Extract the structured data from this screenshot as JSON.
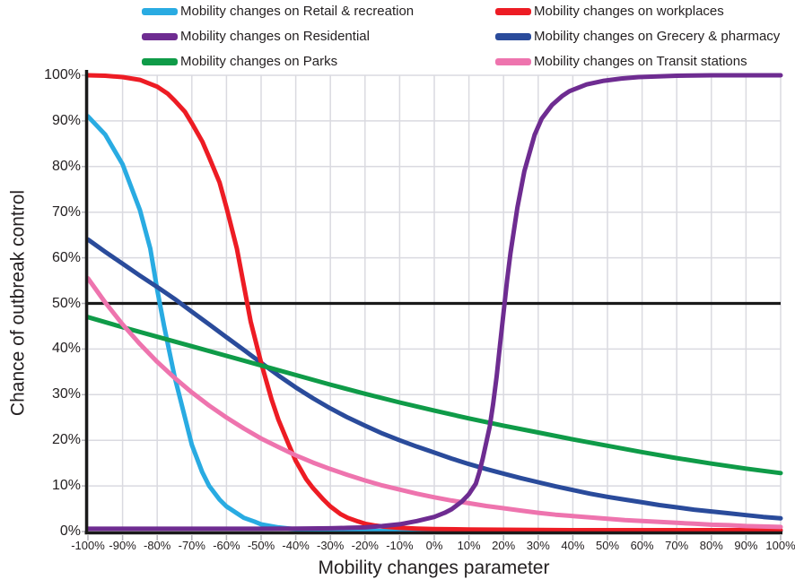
{
  "legend": {
    "items": [
      {
        "label": "Mobility changes on Retail & recreation",
        "color": "#29ABE2",
        "column": 1,
        "key": "retail-recreation"
      },
      {
        "label": "Mobility changes on workplaces",
        "color": "#ED1C24",
        "column": 2,
        "key": "workplaces"
      },
      {
        "label": "Mobility changes on Residential",
        "color": "#6E2C91",
        "column": 1,
        "key": "residential"
      },
      {
        "label": "Mobility changes on Grecery & pharmacy",
        "color": "#2A4B9B",
        "column": 2,
        "key": "grocery-pharmacy"
      },
      {
        "label": "Mobility changes on Parks",
        "color": "#0F9B48",
        "column": 1,
        "key": "parks"
      },
      {
        "label": "Mobility changes on Transit stations",
        "color": "#EE74AE",
        "column": 2,
        "key": "transit-stations"
      }
    ]
  },
  "chart_data": {
    "type": "line",
    "title": "",
    "xlabel": "Mobility changes parameter",
    "ylabel": "Chance of outbreak control",
    "xlim": [
      -100,
      100
    ],
    "ylim": [
      0,
      100
    ],
    "grid": true,
    "legend_position": "top",
    "reference_line": {
      "y": 50,
      "color": "#1A1A1A"
    },
    "x_ticks": [
      "-100%",
      "-90%",
      "-80%",
      "-70%",
      "-60%",
      "-50%",
      "-40%",
      "-30%",
      "-20%",
      "-10%",
      "0%",
      "10%",
      "20%",
      "30%",
      "40%",
      "50%",
      "60%",
      "70%",
      "80%",
      "90%",
      "100%"
    ],
    "y_ticks": [
      "0%",
      "10%",
      "20%",
      "30%",
      "40%",
      "50%",
      "60%",
      "70%",
      "80%",
      "90%",
      "100%"
    ],
    "series": [
      {
        "name": "Mobility changes on Retail & recreation",
        "key": "retail-recreation",
        "color": "#29ABE2",
        "points": [
          [
            -100,
            91
          ],
          [
            -95,
            87
          ],
          [
            -90,
            80.5
          ],
          [
            -85,
            70.5
          ],
          [
            -82,
            62
          ],
          [
            -80,
            53
          ],
          [
            -78,
            45
          ],
          [
            -75,
            34
          ],
          [
            -72,
            25
          ],
          [
            -70,
            19
          ],
          [
            -67,
            13
          ],
          [
            -65,
            10
          ],
          [
            -62,
            7
          ],
          [
            -60,
            5.5
          ],
          [
            -57,
            4
          ],
          [
            -55,
            3
          ],
          [
            -52,
            2.2
          ],
          [
            -50,
            1.6
          ],
          [
            -45,
            0.9
          ],
          [
            -40,
            0.5
          ],
          [
            -35,
            0.3
          ],
          [
            -30,
            0.2
          ],
          [
            -25,
            0.15
          ],
          [
            -20,
            0.12
          ],
          [
            -10,
            0.1
          ],
          [
            0,
            0.1
          ],
          [
            20,
            0.1
          ],
          [
            40,
            0.1
          ],
          [
            60,
            0.1
          ],
          [
            80,
            0.1
          ],
          [
            100,
            0.1
          ]
        ]
      },
      {
        "name": "Mobility changes on Grecery & pharmacy",
        "key": "grocery-pharmacy",
        "color": "#2A4B9B",
        "points": [
          [
            -100,
            64
          ],
          [
            -95,
            61.3
          ],
          [
            -90,
            58.7
          ],
          [
            -85,
            56.1
          ],
          [
            -80,
            53.6
          ],
          [
            -75,
            51
          ],
          [
            -70,
            48.2
          ],
          [
            -65,
            45.4
          ],
          [
            -60,
            42.6
          ],
          [
            -55,
            39.8
          ],
          [
            -50,
            37
          ],
          [
            -45,
            34.2
          ],
          [
            -40,
            31.6
          ],
          [
            -35,
            29.2
          ],
          [
            -30,
            27
          ],
          [
            -25,
            25
          ],
          [
            -20,
            23.2
          ],
          [
            -15,
            21.5
          ],
          [
            -10,
            20
          ],
          [
            -5,
            18.6
          ],
          [
            0,
            17.3
          ],
          [
            5,
            16
          ],
          [
            10,
            14.8
          ],
          [
            15,
            13.7
          ],
          [
            20,
            12.7
          ],
          [
            25,
            11.7
          ],
          [
            30,
            10.8
          ],
          [
            35,
            9.9
          ],
          [
            40,
            9.1
          ],
          [
            45,
            8.3
          ],
          [
            50,
            7.6
          ],
          [
            55,
            7
          ],
          [
            60,
            6.4
          ],
          [
            65,
            5.8
          ],
          [
            70,
            5.3
          ],
          [
            75,
            4.8
          ],
          [
            80,
            4.4
          ],
          [
            85,
            4
          ],
          [
            90,
            3.6
          ],
          [
            95,
            3.2
          ],
          [
            100,
            2.9
          ]
        ]
      },
      {
        "name": "Mobility changes on workplaces",
        "key": "workplaces",
        "color": "#ED1C24",
        "points": [
          [
            -100,
            100
          ],
          [
            -95,
            99.9
          ],
          [
            -90,
            99.6
          ],
          [
            -85,
            99
          ],
          [
            -80,
            97.5
          ],
          [
            -77,
            96
          ],
          [
            -75,
            94.5
          ],
          [
            -72,
            92
          ],
          [
            -70,
            89.5
          ],
          [
            -67,
            85.5
          ],
          [
            -65,
            82
          ],
          [
            -62,
            76.5
          ],
          [
            -60,
            71
          ],
          [
            -57,
            62
          ],
          [
            -55,
            54
          ],
          [
            -53,
            46
          ],
          [
            -50,
            37
          ],
          [
            -47,
            29
          ],
          [
            -45,
            24.5
          ],
          [
            -42,
            19
          ],
          [
            -40,
            15.5
          ],
          [
            -37,
            11.5
          ],
          [
            -35,
            9.5
          ],
          [
            -32,
            7
          ],
          [
            -30,
            5.5
          ],
          [
            -27,
            3.8
          ],
          [
            -25,
            3
          ],
          [
            -22,
            2.2
          ],
          [
            -20,
            1.7
          ],
          [
            -17,
            1.3
          ],
          [
            -15,
            1.1
          ],
          [
            -10,
            0.8
          ],
          [
            -5,
            0.65
          ],
          [
            0,
            0.55
          ],
          [
            10,
            0.45
          ],
          [
            20,
            0.4
          ],
          [
            30,
            0.35
          ],
          [
            40,
            0.3
          ],
          [
            60,
            0.3
          ],
          [
            80,
            0.3
          ],
          [
            100,
            0.3
          ]
        ]
      },
      {
        "name": "Mobility changes on Parks",
        "key": "parks",
        "color": "#0F9B48",
        "points": [
          [
            -100,
            47
          ],
          [
            -90,
            44.8
          ],
          [
            -80,
            42.7
          ],
          [
            -70,
            40.6
          ],
          [
            -60,
            38.5
          ],
          [
            -50,
            36.4
          ],
          [
            -40,
            34.3
          ],
          [
            -30,
            32.2
          ],
          [
            -20,
            30.2
          ],
          [
            -10,
            28.3
          ],
          [
            0,
            26.5
          ],
          [
            10,
            24.8
          ],
          [
            20,
            23.2
          ],
          [
            30,
            21.7
          ],
          [
            40,
            20.2
          ],
          [
            50,
            18.8
          ],
          [
            60,
            17.4
          ],
          [
            70,
            16.1
          ],
          [
            80,
            14.9
          ],
          [
            90,
            13.8
          ],
          [
            100,
            12.8
          ]
        ]
      },
      {
        "name": "Mobility changes on Transit stations",
        "key": "transit-stations",
        "color": "#EE74AE",
        "points": [
          [
            -100,
            55.5
          ],
          [
            -95,
            50.2
          ],
          [
            -90,
            45.4
          ],
          [
            -85,
            41.1
          ],
          [
            -80,
            37.2
          ],
          [
            -75,
            33.7
          ],
          [
            -70,
            30.5
          ],
          [
            -65,
            27.6
          ],
          [
            -60,
            25
          ],
          [
            -55,
            22.6
          ],
          [
            -50,
            20.4
          ],
          [
            -45,
            18.5
          ],
          [
            -40,
            16.7
          ],
          [
            -35,
            15.1
          ],
          [
            -30,
            13.7
          ],
          [
            -25,
            12.4
          ],
          [
            -20,
            11.2
          ],
          [
            -15,
            10.1
          ],
          [
            -10,
            9.2
          ],
          [
            -5,
            8.3
          ],
          [
            0,
            7.5
          ],
          [
            5,
            6.8
          ],
          [
            10,
            6.2
          ],
          [
            15,
            5.6
          ],
          [
            20,
            5.1
          ],
          [
            25,
            4.6
          ],
          [
            30,
            4.1
          ],
          [
            35,
            3.7
          ],
          [
            40,
            3.4
          ],
          [
            45,
            3.1
          ],
          [
            50,
            2.8
          ],
          [
            55,
            2.5
          ],
          [
            60,
            2.3
          ],
          [
            65,
            2.1
          ],
          [
            70,
            1.9
          ],
          [
            75,
            1.7
          ],
          [
            80,
            1.5
          ],
          [
            85,
            1.4
          ],
          [
            90,
            1.2
          ],
          [
            95,
            1.1
          ],
          [
            100,
            1
          ]
        ]
      },
      {
        "name": "Mobility changes on Residential",
        "key": "residential",
        "color": "#6E2C91",
        "points": [
          [
            -100,
            0.6
          ],
          [
            -90,
            0.6
          ],
          [
            -80,
            0.6
          ],
          [
            -70,
            0.6
          ],
          [
            -60,
            0.6
          ],
          [
            -50,
            0.6
          ],
          [
            -40,
            0.65
          ],
          [
            -30,
            0.7
          ],
          [
            -25,
            0.8
          ],
          [
            -20,
            0.9
          ],
          [
            -15,
            1.2
          ],
          [
            -10,
            1.6
          ],
          [
            -5,
            2.3
          ],
          [
            0,
            3.2
          ],
          [
            3,
            4.1
          ],
          [
            5,
            4.9
          ],
          [
            8,
            6.6
          ],
          [
            10,
            8.2
          ],
          [
            12,
            10.5
          ],
          [
            13,
            13
          ],
          [
            14,
            16
          ],
          [
            16,
            23
          ],
          [
            17,
            28
          ],
          [
            18,
            34
          ],
          [
            19,
            41
          ],
          [
            20,
            48
          ],
          [
            21,
            55
          ],
          [
            22,
            61
          ],
          [
            24,
            71
          ],
          [
            26,
            79
          ],
          [
            29,
            87
          ],
          [
            31,
            90.5
          ],
          [
            34,
            93.5
          ],
          [
            37,
            95.5
          ],
          [
            39,
            96.5
          ],
          [
            44,
            98
          ],
          [
            49,
            98.8
          ],
          [
            54,
            99.3
          ],
          [
            59,
            99.6
          ],
          [
            70,
            99.9
          ],
          [
            80,
            100
          ],
          [
            90,
            100
          ],
          [
            100,
            100
          ]
        ]
      }
    ]
  },
  "colors": {
    "grid": "#DADAE0",
    "axis": "#1A1A1A",
    "tick_stub": "#B5B5BC",
    "text": "#231F20"
  }
}
